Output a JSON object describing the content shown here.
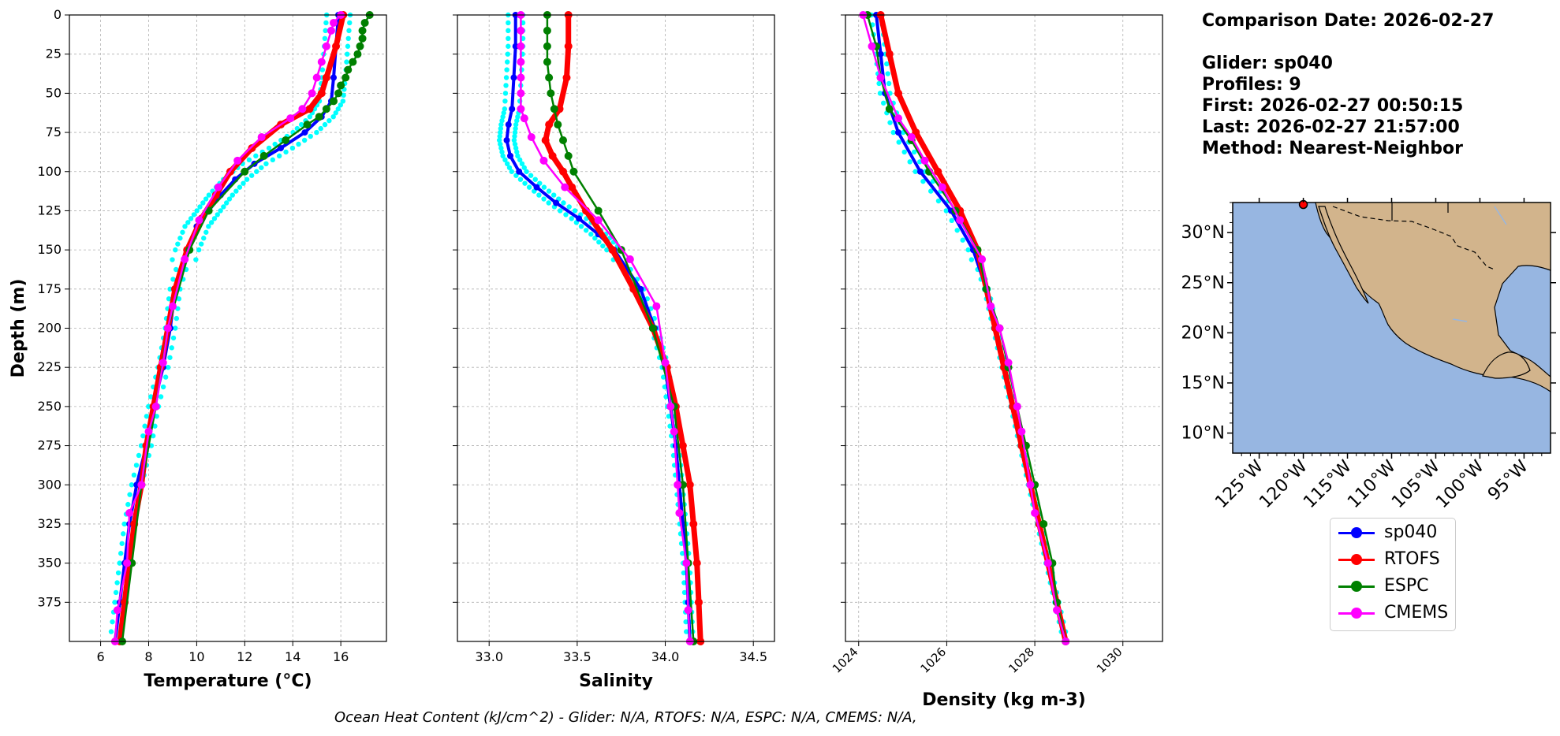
{
  "info": {
    "comparison_date": "Comparison Date: 2026-02-27",
    "glider": "Glider: sp040",
    "profiles": "Profiles: 9",
    "first": "First: 2026-02-27 00:50:15",
    "last": "Last: 2026-02-27 21:57:00",
    "method": "Method: Nearest-Neighbor"
  },
  "footer": "Ocean Heat Content (kJ/cm^2) - Glider: N/A,  RTOFS: N/A,  ESPC: N/A,  CMEMS: N/A,",
  "legend": [
    {
      "name": "sp040",
      "color": "#0000ff"
    },
    {
      "name": "RTOFS",
      "color": "#ff0000"
    },
    {
      "name": "ESPC",
      "color": "#008000"
    },
    {
      "name": "CMEMS",
      "color": "#ff00ff"
    }
  ],
  "map": {
    "lat_ticks": [
      "30°N",
      "25°N",
      "20°N",
      "15°N",
      "10°N"
    ],
    "lon_ticks": [
      "125°W",
      "120°W",
      "115°W",
      "110°W",
      "105°W",
      "100°W",
      "95°W"
    ],
    "glider_location": {
      "lon": -120.0,
      "lat": 32.8
    },
    "ocean_color": "#97b6e1",
    "land_color": "#d2b48c"
  },
  "chart_data": [
    {
      "type": "line",
      "xlabel": "Temperature (°C)",
      "ylabel": "Depth (m)",
      "xlim": [
        4.7,
        17.9
      ],
      "ylim": [
        400,
        0
      ],
      "xticks": [
        6,
        8,
        10,
        12,
        14,
        16
      ],
      "yticks": [
        0,
        25,
        50,
        75,
        100,
        125,
        150,
        175,
        200,
        225,
        250,
        275,
        300,
        325,
        350,
        375
      ],
      "grid": true,
      "series": [
        {
          "name": "sp040",
          "color": "#0000ff",
          "depth": [
            0,
            20,
            40,
            55,
            65,
            75,
            85,
            95,
            105,
            115,
            125,
            135,
            150,
            175,
            200,
            225,
            250,
            275,
            300,
            325,
            350,
            375,
            400
          ],
          "values": [
            15.9,
            15.8,
            15.7,
            15.6,
            15.2,
            14.5,
            13.5,
            12.4,
            11.6,
            11.0,
            10.5,
            10.0,
            9.6,
            9.1,
            8.9,
            8.6,
            8.2,
            7.9,
            7.5,
            7.2,
            7.0,
            6.8,
            6.6
          ]
        },
        {
          "name": "RTOFS",
          "color": "#ff0000",
          "depth": [
            0,
            20,
            40,
            50,
            60,
            70,
            85,
            100,
            115,
            130,
            150,
            175,
            200,
            225,
            250,
            275,
            300,
            325,
            350,
            375,
            400
          ],
          "values": [
            16.1,
            15.8,
            15.4,
            15.2,
            14.7,
            13.5,
            12.3,
            11.4,
            10.8,
            10.2,
            9.6,
            9.1,
            8.8,
            8.5,
            8.2,
            7.9,
            7.7,
            7.4,
            7.2,
            7.0,
            6.8
          ]
        },
        {
          "name": "ESPC",
          "color": "#008000",
          "depth": [
            0,
            5,
            10,
            15,
            20,
            25,
            30,
            35,
            40,
            45,
            50,
            55,
            60,
            65,
            70,
            80,
            90,
            100,
            125,
            150,
            200,
            250,
            300,
            350,
            400
          ],
          "values": [
            17.2,
            17.0,
            16.9,
            16.9,
            16.8,
            16.7,
            16.5,
            16.3,
            16.2,
            16.0,
            15.9,
            15.7,
            15.4,
            15.1,
            14.6,
            13.7,
            12.8,
            12.0,
            10.5,
            9.7,
            8.8,
            8.3,
            7.7,
            7.3,
            6.9
          ]
        },
        {
          "name": "CMEMS",
          "color": "#ff00ff",
          "depth": [
            0,
            5,
            10,
            20,
            30,
            40,
            50,
            60,
            66,
            78,
            93,
            110,
            131,
            156,
            186,
            200,
            222,
            250,
            266,
            300,
            318,
            350,
            380,
            400
          ],
          "values": [
            16.0,
            15.7,
            15.6,
            15.4,
            15.2,
            15.0,
            14.8,
            14.4,
            13.9,
            12.7,
            11.7,
            10.9,
            10.1,
            9.5,
            9.0,
            8.8,
            8.6,
            8.3,
            8.0,
            7.7,
            7.2,
            7.1,
            6.7,
            6.6
          ]
        }
      ]
    },
    {
      "type": "line",
      "xlabel": "Salinity",
      "xlim": [
        32.82,
        34.62
      ],
      "ylim": [
        400,
        0
      ],
      "xticks": [
        33.0,
        33.5,
        34.0,
        34.5
      ],
      "grid": true,
      "series": [
        {
          "name": "sp040",
          "color": "#0000ff",
          "depth": [
            0,
            20,
            40,
            60,
            70,
            80,
            90,
            100,
            110,
            120,
            130,
            140,
            150,
            175,
            200,
            225,
            250,
            275,
            300,
            325,
            350,
            375,
            400
          ],
          "values": [
            33.15,
            33.15,
            33.14,
            33.13,
            33.11,
            33.1,
            33.12,
            33.17,
            33.27,
            33.38,
            33.51,
            33.62,
            33.71,
            33.86,
            33.94,
            34.0,
            34.03,
            34.06,
            34.08,
            34.1,
            34.12,
            34.13,
            34.14
          ]
        },
        {
          "name": "RTOFS",
          "color": "#ff0000",
          "depth": [
            0,
            20,
            40,
            60,
            70,
            80,
            90,
            100,
            110,
            125,
            150,
            175,
            200,
            225,
            250,
            275,
            300,
            325,
            350,
            375,
            400
          ],
          "values": [
            33.45,
            33.45,
            33.44,
            33.4,
            33.34,
            33.32,
            33.36,
            33.42,
            33.47,
            33.55,
            33.7,
            33.82,
            33.93,
            34.01,
            34.06,
            34.1,
            34.14,
            34.16,
            34.18,
            34.19,
            34.2
          ]
        },
        {
          "name": "ESPC",
          "color": "#008000",
          "depth": [
            0,
            10,
            20,
            30,
            40,
            50,
            60,
            70,
            80,
            90,
            100,
            125,
            150,
            200,
            250,
            300,
            350,
            400
          ],
          "values": [
            33.33,
            33.33,
            33.33,
            33.33,
            33.34,
            33.35,
            33.37,
            33.39,
            33.42,
            33.45,
            33.48,
            33.62,
            33.75,
            33.93,
            34.05,
            34.1,
            34.13,
            34.16
          ]
        },
        {
          "name": "CMEMS",
          "color": "#ff00ff",
          "depth": [
            0,
            10,
            20,
            30,
            40,
            50,
            60,
            66,
            78,
            93,
            110,
            131,
            156,
            186,
            222,
            250,
            266,
            300,
            318,
            350,
            380,
            400
          ],
          "values": [
            33.18,
            33.18,
            33.18,
            33.18,
            33.18,
            33.18,
            33.18,
            33.2,
            33.24,
            33.31,
            33.43,
            33.62,
            33.8,
            33.95,
            34.0,
            34.03,
            34.05,
            34.07,
            34.08,
            34.12,
            34.13,
            34.14
          ]
        }
      ]
    },
    {
      "type": "line",
      "xlabel": "Density (kg m-3)",
      "xlim": [
        1023.7,
        1030.9
      ],
      "ylim": [
        400,
        0
      ],
      "xticks": [
        1024,
        1026,
        1028,
        1030
      ],
      "grid": true,
      "series": [
        {
          "name": "sp040",
          "color": "#0000ff",
          "depth": [
            0,
            25,
            50,
            75,
            100,
            125,
            150,
            175,
            200,
            225,
            250,
            275,
            300,
            325,
            350,
            375,
            400
          ],
          "values": [
            1024.4,
            1024.5,
            1024.6,
            1024.9,
            1025.4,
            1026.1,
            1026.6,
            1026.9,
            1027.1,
            1027.3,
            1027.5,
            1027.7,
            1027.9,
            1028.1,
            1028.3,
            1028.5,
            1028.7
          ]
        },
        {
          "name": "RTOFS",
          "color": "#ff0000",
          "depth": [
            0,
            25,
            50,
            75,
            100,
            125,
            150,
            175,
            200,
            225,
            250,
            275,
            300,
            325,
            350,
            375,
            400
          ],
          "values": [
            1024.5,
            1024.7,
            1024.9,
            1025.3,
            1025.8,
            1026.3,
            1026.7,
            1026.9,
            1027.1,
            1027.3,
            1027.5,
            1027.7,
            1027.9,
            1028.1,
            1028.3,
            1028.5,
            1028.7
          ]
        },
        {
          "name": "ESPC",
          "color": "#008000",
          "depth": [
            0,
            20,
            40,
            60,
            80,
            100,
            125,
            150,
            175,
            200,
            225,
            250,
            275,
            300,
            325,
            350,
            375,
            400
          ],
          "values": [
            1024.2,
            1024.4,
            1024.5,
            1024.7,
            1025.2,
            1025.6,
            1026.2,
            1026.7,
            1026.9,
            1027.2,
            1027.4,
            1027.6,
            1027.8,
            1028.0,
            1028.2,
            1028.4,
            1028.5,
            1028.7
          ]
        },
        {
          "name": "CMEMS",
          "color": "#ff00ff",
          "depth": [
            0,
            20,
            40,
            66,
            78,
            93,
            110,
            131,
            156,
            186,
            200,
            222,
            250,
            266,
            300,
            318,
            350,
            380,
            400
          ],
          "values": [
            1024.1,
            1024.3,
            1024.5,
            1024.9,
            1025.2,
            1025.5,
            1025.9,
            1026.3,
            1026.8,
            1027.0,
            1027.2,
            1027.4,
            1027.6,
            1027.7,
            1027.9,
            1028.0,
            1028.3,
            1028.5,
            1028.7
          ]
        }
      ]
    }
  ]
}
